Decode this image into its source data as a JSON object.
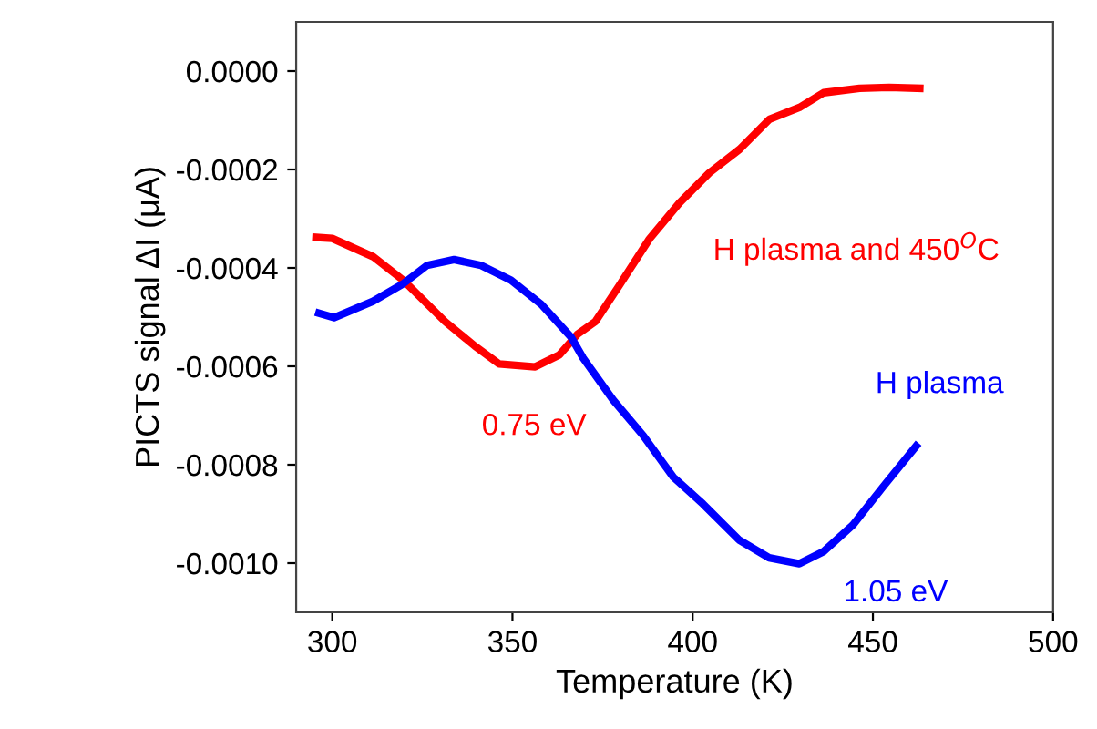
{
  "chart_data": {
    "type": "line",
    "xlabel": "Temperature (K)",
    "ylabel": "PICTS signal ΔI (μA)",
    "xlim": [
      290,
      500
    ],
    "xticks": [
      300,
      350,
      400,
      450,
      500
    ],
    "ylim": [
      -0.0011,
      0.0001
    ],
    "yticks": [
      {
        "value": -0.001,
        "label": "-0.0010"
      },
      {
        "value": -0.0008,
        "label": "-0.0008"
      },
      {
        "value": -0.0006,
        "label": "-0.0006"
      },
      {
        "value": -0.0004,
        "label": "-0.0004"
      },
      {
        "value": -0.0002,
        "label": "-0.0002"
      },
      {
        "value": 0,
        "label": "0.0000"
      }
    ],
    "grid": false,
    "legend": false,
    "marker": "none",
    "line_style": "solid",
    "series": [
      {
        "name": "H plasma and 450$^{O}$C",
        "color": "#ff0000",
        "x": [
          295.5,
          300,
          311.3,
          319.7,
          331.3,
          339.6,
          346.3,
          356.3,
          363,
          368,
          373,
          379.6,
          388,
          396.3,
          404.6,
          413,
          421.3,
          429.6,
          436.3,
          446.3,
          454.5,
          463
        ],
        "values": [
          -0.000338,
          -0.00034,
          -0.000377,
          -0.000425,
          -0.000509,
          -0.000559,
          -0.000595,
          -0.000601,
          -0.000577,
          -0.000535,
          -0.000509,
          -0.000436,
          -0.000341,
          -0.000268,
          -0.000207,
          -0.000159,
          -9.8e-05,
          -7.4e-05,
          -4.4e-05,
          -3.5e-05,
          -3.3e-05,
          -3.5e-05
        ]
      },
      {
        "name": "H plasma",
        "color": "#0000ff",
        "x": [
          296.3,
          300.5,
          311.3,
          319.7,
          326.3,
          333.8,
          341.3,
          349.6,
          358,
          366.3,
          369.6,
          377.9,
          386.3,
          394.6,
          402.9,
          412.9,
          421.2,
          429.6,
          436.2,
          444.5,
          452.9,
          462
        ],
        "values": [
          -0.000492,
          -0.000501,
          -0.000468,
          -0.000432,
          -0.000395,
          -0.000383,
          -0.000395,
          -0.000425,
          -0.000474,
          -0.000541,
          -0.000583,
          -0.000668,
          -0.000741,
          -0.000825,
          -0.00088,
          -0.000953,
          -0.000989,
          -0.001001,
          -0.000977,
          -0.000922,
          -0.000844,
          -0.000762
        ]
      }
    ],
    "annotations": [
      {
        "text": "0.75 eV",
        "x": 356,
        "y": -0.0006
      },
      {
        "text": "1.05 eV",
        "x": 429.6,
        "y": -0.001
      }
    ]
  }
}
